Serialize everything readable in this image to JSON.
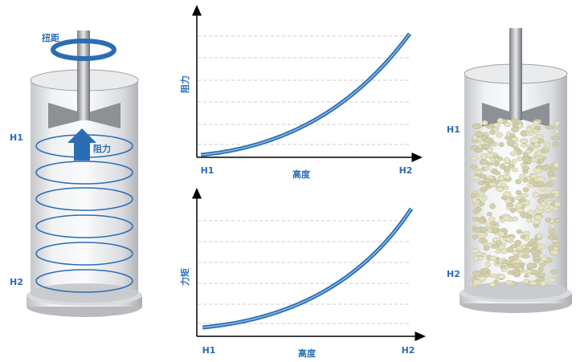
{
  "left_diagram": {
    "torque_label": "扭距",
    "resistance_label": "阻力",
    "h1_label": "H1",
    "h2_label": "H2"
  },
  "charts": [
    {
      "y_label": "阻力",
      "x_label": "高度",
      "x_start": "H1",
      "x_end": "H2"
    },
    {
      "y_label": "力矩",
      "x_label": "高度",
      "x_start": "H1",
      "x_end": "H2"
    }
  ],
  "right_diagram": {
    "h1_label": "H1",
    "h2_label": "H2"
  }
}
